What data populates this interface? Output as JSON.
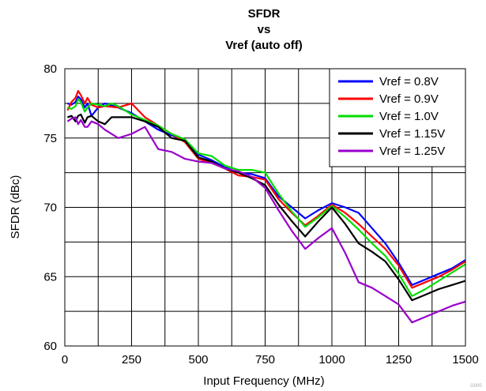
{
  "chart_data": {
    "type": "line",
    "title": [
      "SFDR",
      "vs",
      "Vref (auto off)"
    ],
    "xlabel": "Input Frequency (MHz)",
    "ylabel": "SFDR (dBc)",
    "xlim": [
      0,
      1500
    ],
    "ylim": [
      60,
      80
    ],
    "xticks": [
      0,
      250,
      500,
      750,
      1000,
      1250,
      1500
    ],
    "yticks": [
      60,
      65,
      70,
      75,
      80
    ],
    "grid": true,
    "legend_position": "top-right",
    "watermark": "G000",
    "series": [
      {
        "name": "Vref = 0.8V",
        "color": "#0000ff",
        "x": [
          10,
          25,
          40,
          50,
          60,
          75,
          85,
          100,
          125,
          150,
          200,
          250,
          300,
          350,
          400,
          450,
          500,
          550,
          600,
          650,
          700,
          750,
          800,
          850,
          900,
          950,
          1000,
          1050,
          1100,
          1150,
          1200,
          1250,
          1300,
          1350,
          1400,
          1450,
          1500
        ],
        "y": [
          77.5,
          77.4,
          77.6,
          78.0,
          77.8,
          77.2,
          77.5,
          76.6,
          77.2,
          77.5,
          77.2,
          76.8,
          76.2,
          75.6,
          75.2,
          74.8,
          73.8,
          73.4,
          72.9,
          72.5,
          72.4,
          72.1,
          70.8,
          70.0,
          69.2,
          69.8,
          70.3,
          70.0,
          69.6,
          68.5,
          67.4,
          66.0,
          64.4,
          64.8,
          65.2,
          65.6,
          66.2
        ]
      },
      {
        "name": "Vref = 0.9V",
        "color": "#ff0000",
        "x": [
          10,
          25,
          40,
          50,
          60,
          75,
          85,
          100,
          125,
          150,
          200,
          250,
          300,
          350,
          400,
          450,
          500,
          550,
          600,
          650,
          700,
          750,
          800,
          850,
          900,
          950,
          1000,
          1050,
          1100,
          1150,
          1200,
          1250,
          1300,
          1350,
          1400,
          1450,
          1500
        ],
        "y": [
          77.0,
          77.6,
          77.9,
          78.4,
          78.1,
          77.5,
          77.9,
          77.4,
          77.2,
          77.3,
          77.2,
          77.5,
          76.5,
          75.9,
          75.3,
          74.7,
          73.5,
          73.2,
          72.8,
          72.3,
          72.2,
          72.0,
          70.6,
          69.6,
          68.7,
          69.4,
          70.2,
          69.6,
          68.8,
          67.9,
          67.0,
          65.8,
          64.2,
          64.6,
          65.0,
          65.5,
          66.1
        ]
      },
      {
        "name": "Vref = 1.0V",
        "color": "#00dd00",
        "x": [
          10,
          25,
          40,
          50,
          60,
          75,
          85,
          100,
          125,
          150,
          175,
          200,
          250,
          300,
          350,
          400,
          450,
          500,
          550,
          600,
          650,
          700,
          750,
          800,
          850,
          900,
          950,
          1000,
          1050,
          1100,
          1150,
          1200,
          1250,
          1300,
          1350,
          1400,
          1450,
          1500
        ],
        "y": [
          77.2,
          77.1,
          77.3,
          77.8,
          77.6,
          76.9,
          77.2,
          77.5,
          77.4,
          77.3,
          77.5,
          77.3,
          76.7,
          76.3,
          75.9,
          75.3,
          74.9,
          73.9,
          73.7,
          73.0,
          72.7,
          72.7,
          72.5,
          71.0,
          69.7,
          68.6,
          69.3,
          70.1,
          69.3,
          68.4,
          67.4,
          66.5,
          65.2,
          63.6,
          64.1,
          64.7,
          65.3,
          65.9
        ]
      },
      {
        "name": "Vref = 1.15V",
        "color": "#000000",
        "x": [
          10,
          25,
          40,
          50,
          60,
          75,
          85,
          100,
          125,
          150,
          175,
          200,
          250,
          300,
          350,
          400,
          450,
          500,
          550,
          600,
          650,
          700,
          750,
          800,
          850,
          900,
          950,
          1000,
          1050,
          1100,
          1150,
          1200,
          1250,
          1300,
          1350,
          1400,
          1450,
          1500
        ],
        "y": [
          76.5,
          76.6,
          76.2,
          76.6,
          76.7,
          76.1,
          76.5,
          76.6,
          76.2,
          76.0,
          76.5,
          76.5,
          76.5,
          76.2,
          75.8,
          75.0,
          74.8,
          73.6,
          73.3,
          72.8,
          72.5,
          72.1,
          71.6,
          70.2,
          69.0,
          67.9,
          69.0,
          70.0,
          68.8,
          67.4,
          66.8,
          66.1,
          64.8,
          63.3,
          63.7,
          64.1,
          64.4,
          64.7
        ]
      },
      {
        "name": "Vref = 1.25V",
        "color": "#9900cc",
        "x": [
          10,
          25,
          40,
          50,
          60,
          75,
          85,
          100,
          125,
          150,
          200,
          250,
          300,
          350,
          400,
          450,
          500,
          550,
          600,
          650,
          700,
          750,
          800,
          850,
          900,
          950,
          1000,
          1050,
          1100,
          1150,
          1200,
          1250,
          1300,
          1350,
          1400,
          1450,
          1500
        ],
        "y": [
          76.2,
          76.4,
          76.5,
          76.0,
          76.3,
          75.8,
          75.8,
          76.2,
          76.0,
          75.6,
          75.0,
          75.3,
          75.8,
          74.2,
          74.0,
          73.5,
          73.3,
          73.2,
          72.8,
          72.6,
          72.2,
          71.4,
          69.8,
          68.3,
          67.0,
          67.8,
          68.5,
          66.7,
          64.6,
          64.2,
          63.6,
          63.0,
          61.7,
          62.1,
          62.5,
          62.9,
          63.2
        ]
      }
    ]
  }
}
